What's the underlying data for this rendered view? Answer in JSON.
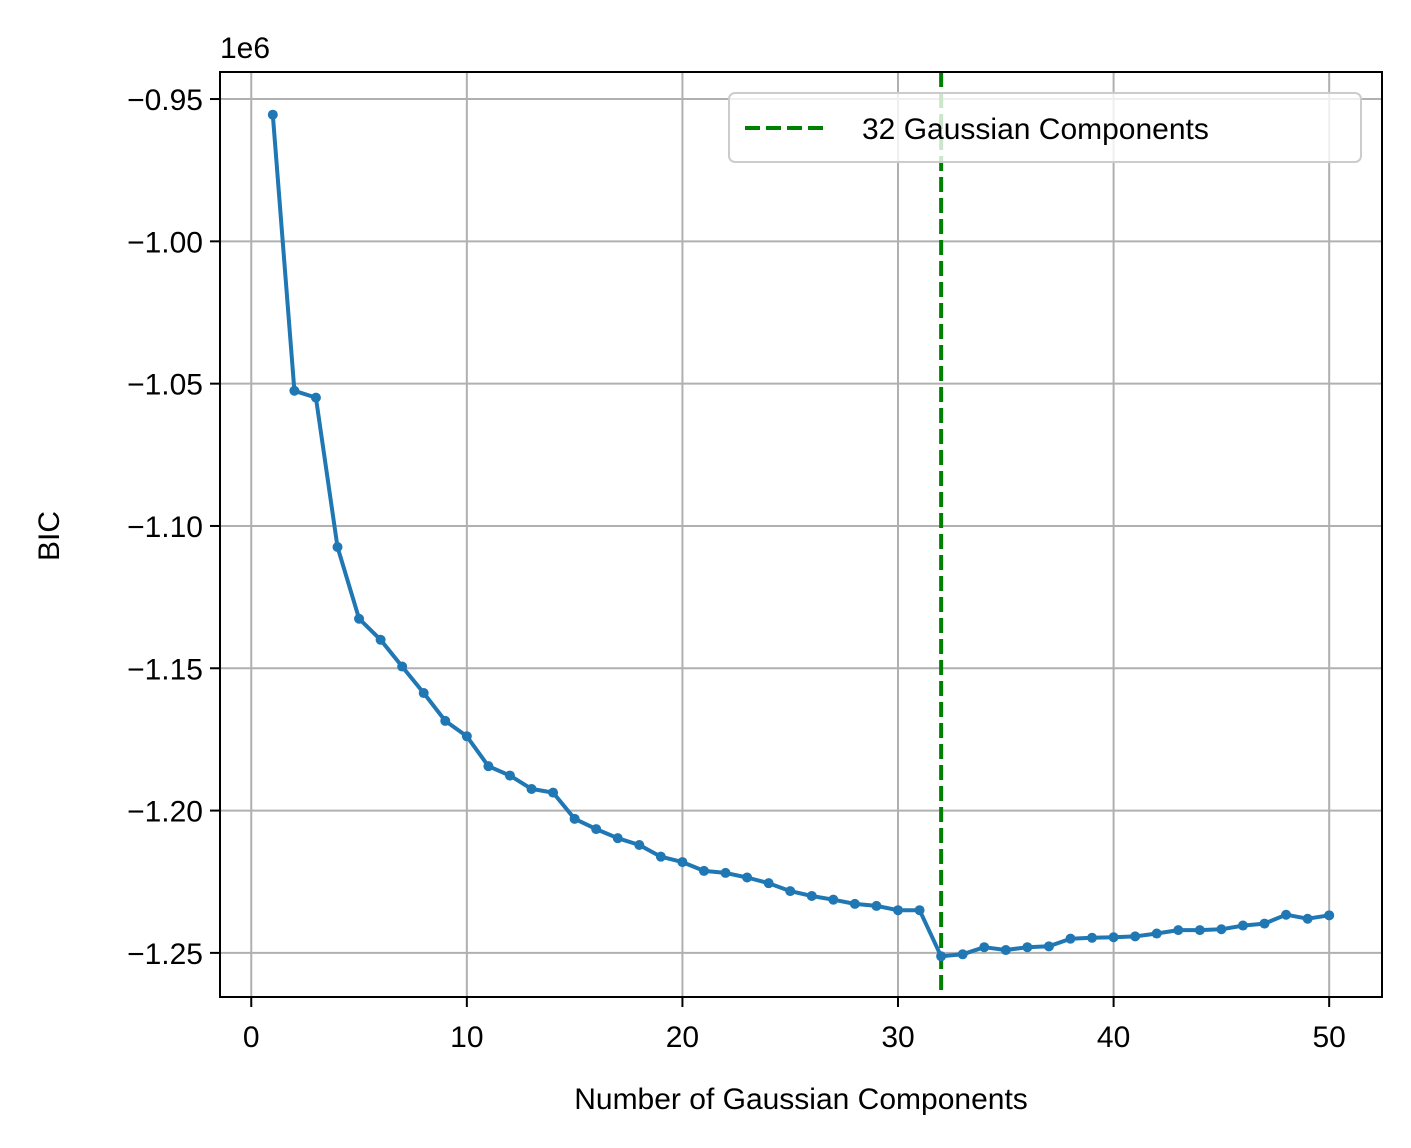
{
  "chart_data": {
    "type": "line",
    "xlabel": "Number of Gaussian Components",
    "ylabel": "BIC",
    "offset_text": "1e6",
    "y_scale_factor": 1000000,
    "xlim": [
      -1.45,
      52.45
    ],
    "ylim": [
      -1.2655,
      -0.9405
    ],
    "xticks": [
      0,
      10,
      20,
      30,
      40,
      50
    ],
    "xtick_labels": [
      "0",
      "10",
      "20",
      "30",
      "40",
      "50"
    ],
    "yticks": [
      -0.95,
      -1.0,
      -1.05,
      -1.1,
      -1.15,
      -1.2,
      -1.25
    ],
    "ytick_labels": [
      "−0.95",
      "−1.00",
      "−1.05",
      "−1.10",
      "−1.15",
      "−1.20",
      "−1.25"
    ],
    "grid": true,
    "legend_position": "top-right",
    "series": [
      {
        "color": "#1f77b4",
        "x": [
          1,
          2,
          3,
          4,
          5,
          6,
          7,
          8,
          9,
          10,
          11,
          12,
          13,
          14,
          15,
          16,
          17,
          18,
          19,
          20,
          21,
          22,
          23,
          24,
          25,
          26,
          27,
          28,
          29,
          30,
          31,
          32,
          33,
          34,
          35,
          36,
          37,
          38,
          39,
          40,
          41,
          42,
          43,
          44,
          45,
          46,
          47,
          48,
          49,
          50
        ],
        "y": [
          -0.9555,
          -1.0525,
          -1.0549,
          -1.1074,
          -1.1326,
          -1.14,
          -1.1494,
          -1.1587,
          -1.1685,
          -1.1739,
          -1.1844,
          -1.1877,
          -1.1924,
          -1.1937,
          -1.2029,
          -1.2065,
          -1.2097,
          -1.2121,
          -1.2162,
          -1.2181,
          -1.2212,
          -1.2219,
          -1.2235,
          -1.2255,
          -1.2283,
          -1.23,
          -1.2313,
          -1.2328,
          -1.2335,
          -1.235,
          -1.235,
          -1.2512,
          -1.2505,
          -1.248,
          -1.249,
          -1.248,
          -1.2477,
          -1.245,
          -1.2447,
          -1.2445,
          -1.2442,
          -1.2432,
          -1.242,
          -1.242,
          -1.2417,
          -1.2404,
          -1.2397,
          -1.2366,
          -1.238,
          -1.2368
        ]
      }
    ],
    "vline": {
      "x": 32,
      "label": "32 Gaussian Components",
      "color": "#008000"
    }
  }
}
